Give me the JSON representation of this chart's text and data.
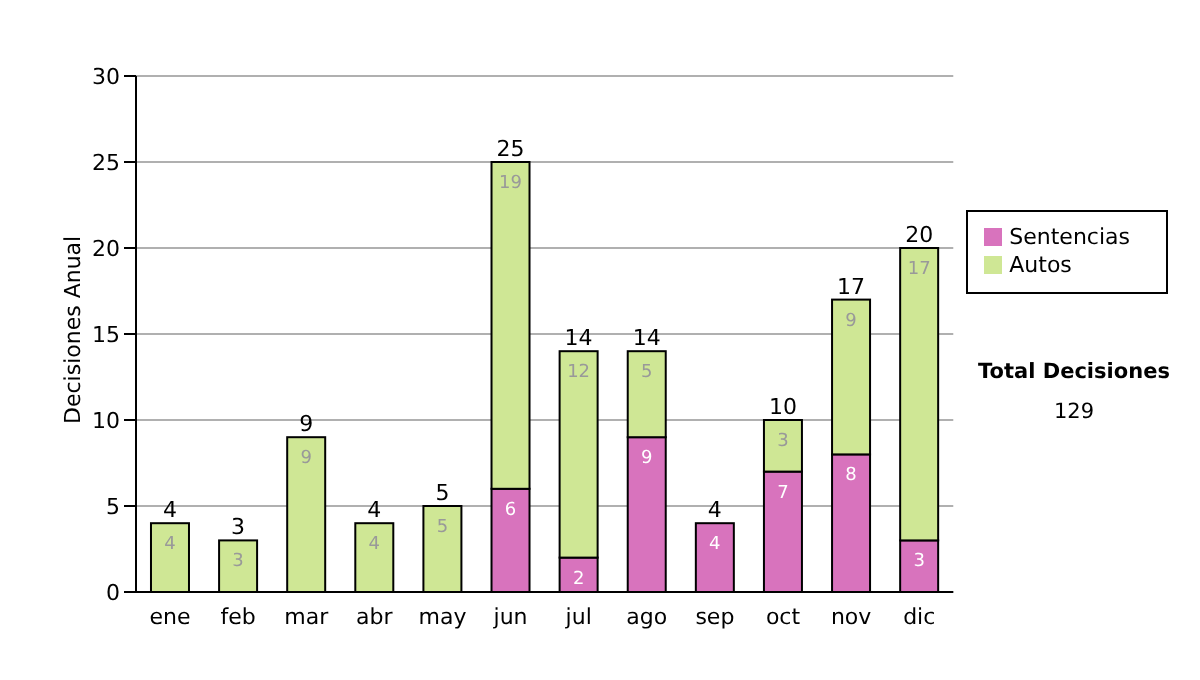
{
  "chart_data": {
    "type": "bar",
    "stacked": true,
    "ylabel": "Decisiones Anual",
    "categories": [
      "ene",
      "feb",
      "mar",
      "abr",
      "may",
      "jun",
      "jul",
      "ago",
      "sep",
      "oct",
      "nov",
      "dic"
    ],
    "series": [
      {
        "name": "Sentencias",
        "color": "#d873bd",
        "values": [
          0,
          0,
          0,
          0,
          0,
          6,
          2,
          9,
          4,
          7,
          8,
          3
        ],
        "value_labels": [
          null,
          null,
          null,
          null,
          null,
          "6",
          "2",
          "9",
          "4",
          "7",
          "8",
          "3"
        ]
      },
      {
        "name": "Autos",
        "color": "#cfe795",
        "values": [
          4,
          3,
          9,
          4,
          5,
          19,
          12,
          5,
          0,
          3,
          9,
          17
        ],
        "value_labels": [
          "4",
          "3",
          "9",
          "4",
          "5",
          "19",
          "12",
          "5",
          null,
          "3",
          "9",
          "17"
        ]
      }
    ],
    "totals": [
      "4",
      "3",
      "9",
      "4",
      "5",
      "25",
      "14",
      "14",
      "4",
      "10",
      "17",
      "20"
    ],
    "ylim": [
      0,
      30
    ],
    "yticks": [
      0,
      5,
      10,
      15,
      20,
      25,
      30
    ],
    "grid": "y",
    "legend": "right",
    "annotations": [
      "Total Decisiones",
      "129"
    ]
  }
}
